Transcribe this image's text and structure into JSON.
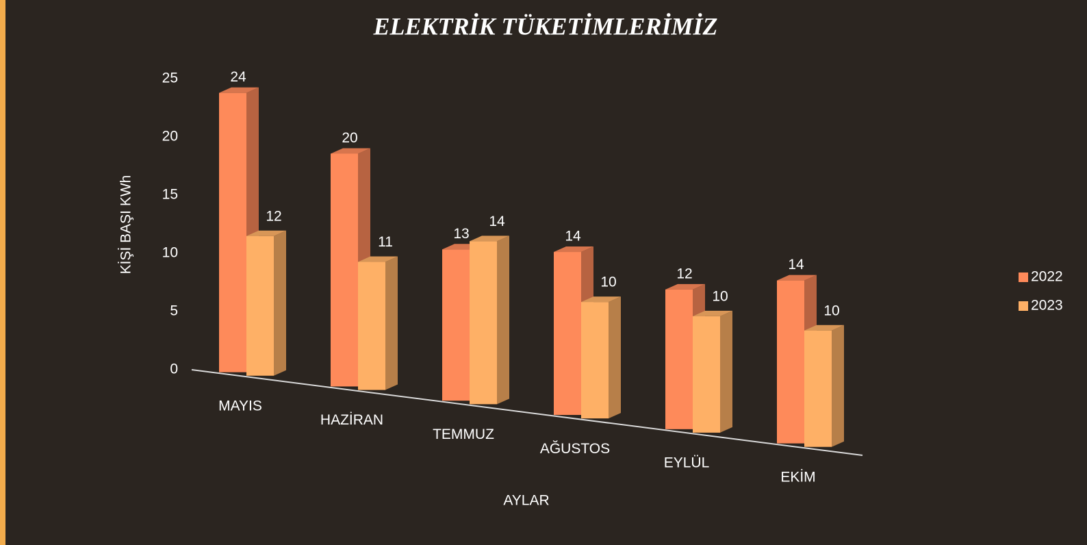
{
  "chart_data": {
    "type": "bar3d",
    "title": "ELEKTRİK TÜKETİMLERİMİZ",
    "y_label": "KİŞİ BAŞI KWh",
    "x_label": "AYLAR",
    "categories": [
      "MAYIS",
      "HAZİRAN",
      "TEMMUZ",
      "AĞUSTOS",
      "EYLÜL",
      "EKİM"
    ],
    "series": [
      {
        "name": "2022",
        "color": "#fe8a5a",
        "values": [
          24,
          20,
          13,
          14,
          12,
          14
        ]
      },
      {
        "name": "2023",
        "color": "#feb066",
        "values": [
          12,
          11,
          14,
          10,
          10,
          10
        ]
      }
    ],
    "ylim": [
      0,
      25
    ],
    "yticks": [
      0,
      5,
      10,
      15,
      20,
      25
    ],
    "legend": "right"
  }
}
